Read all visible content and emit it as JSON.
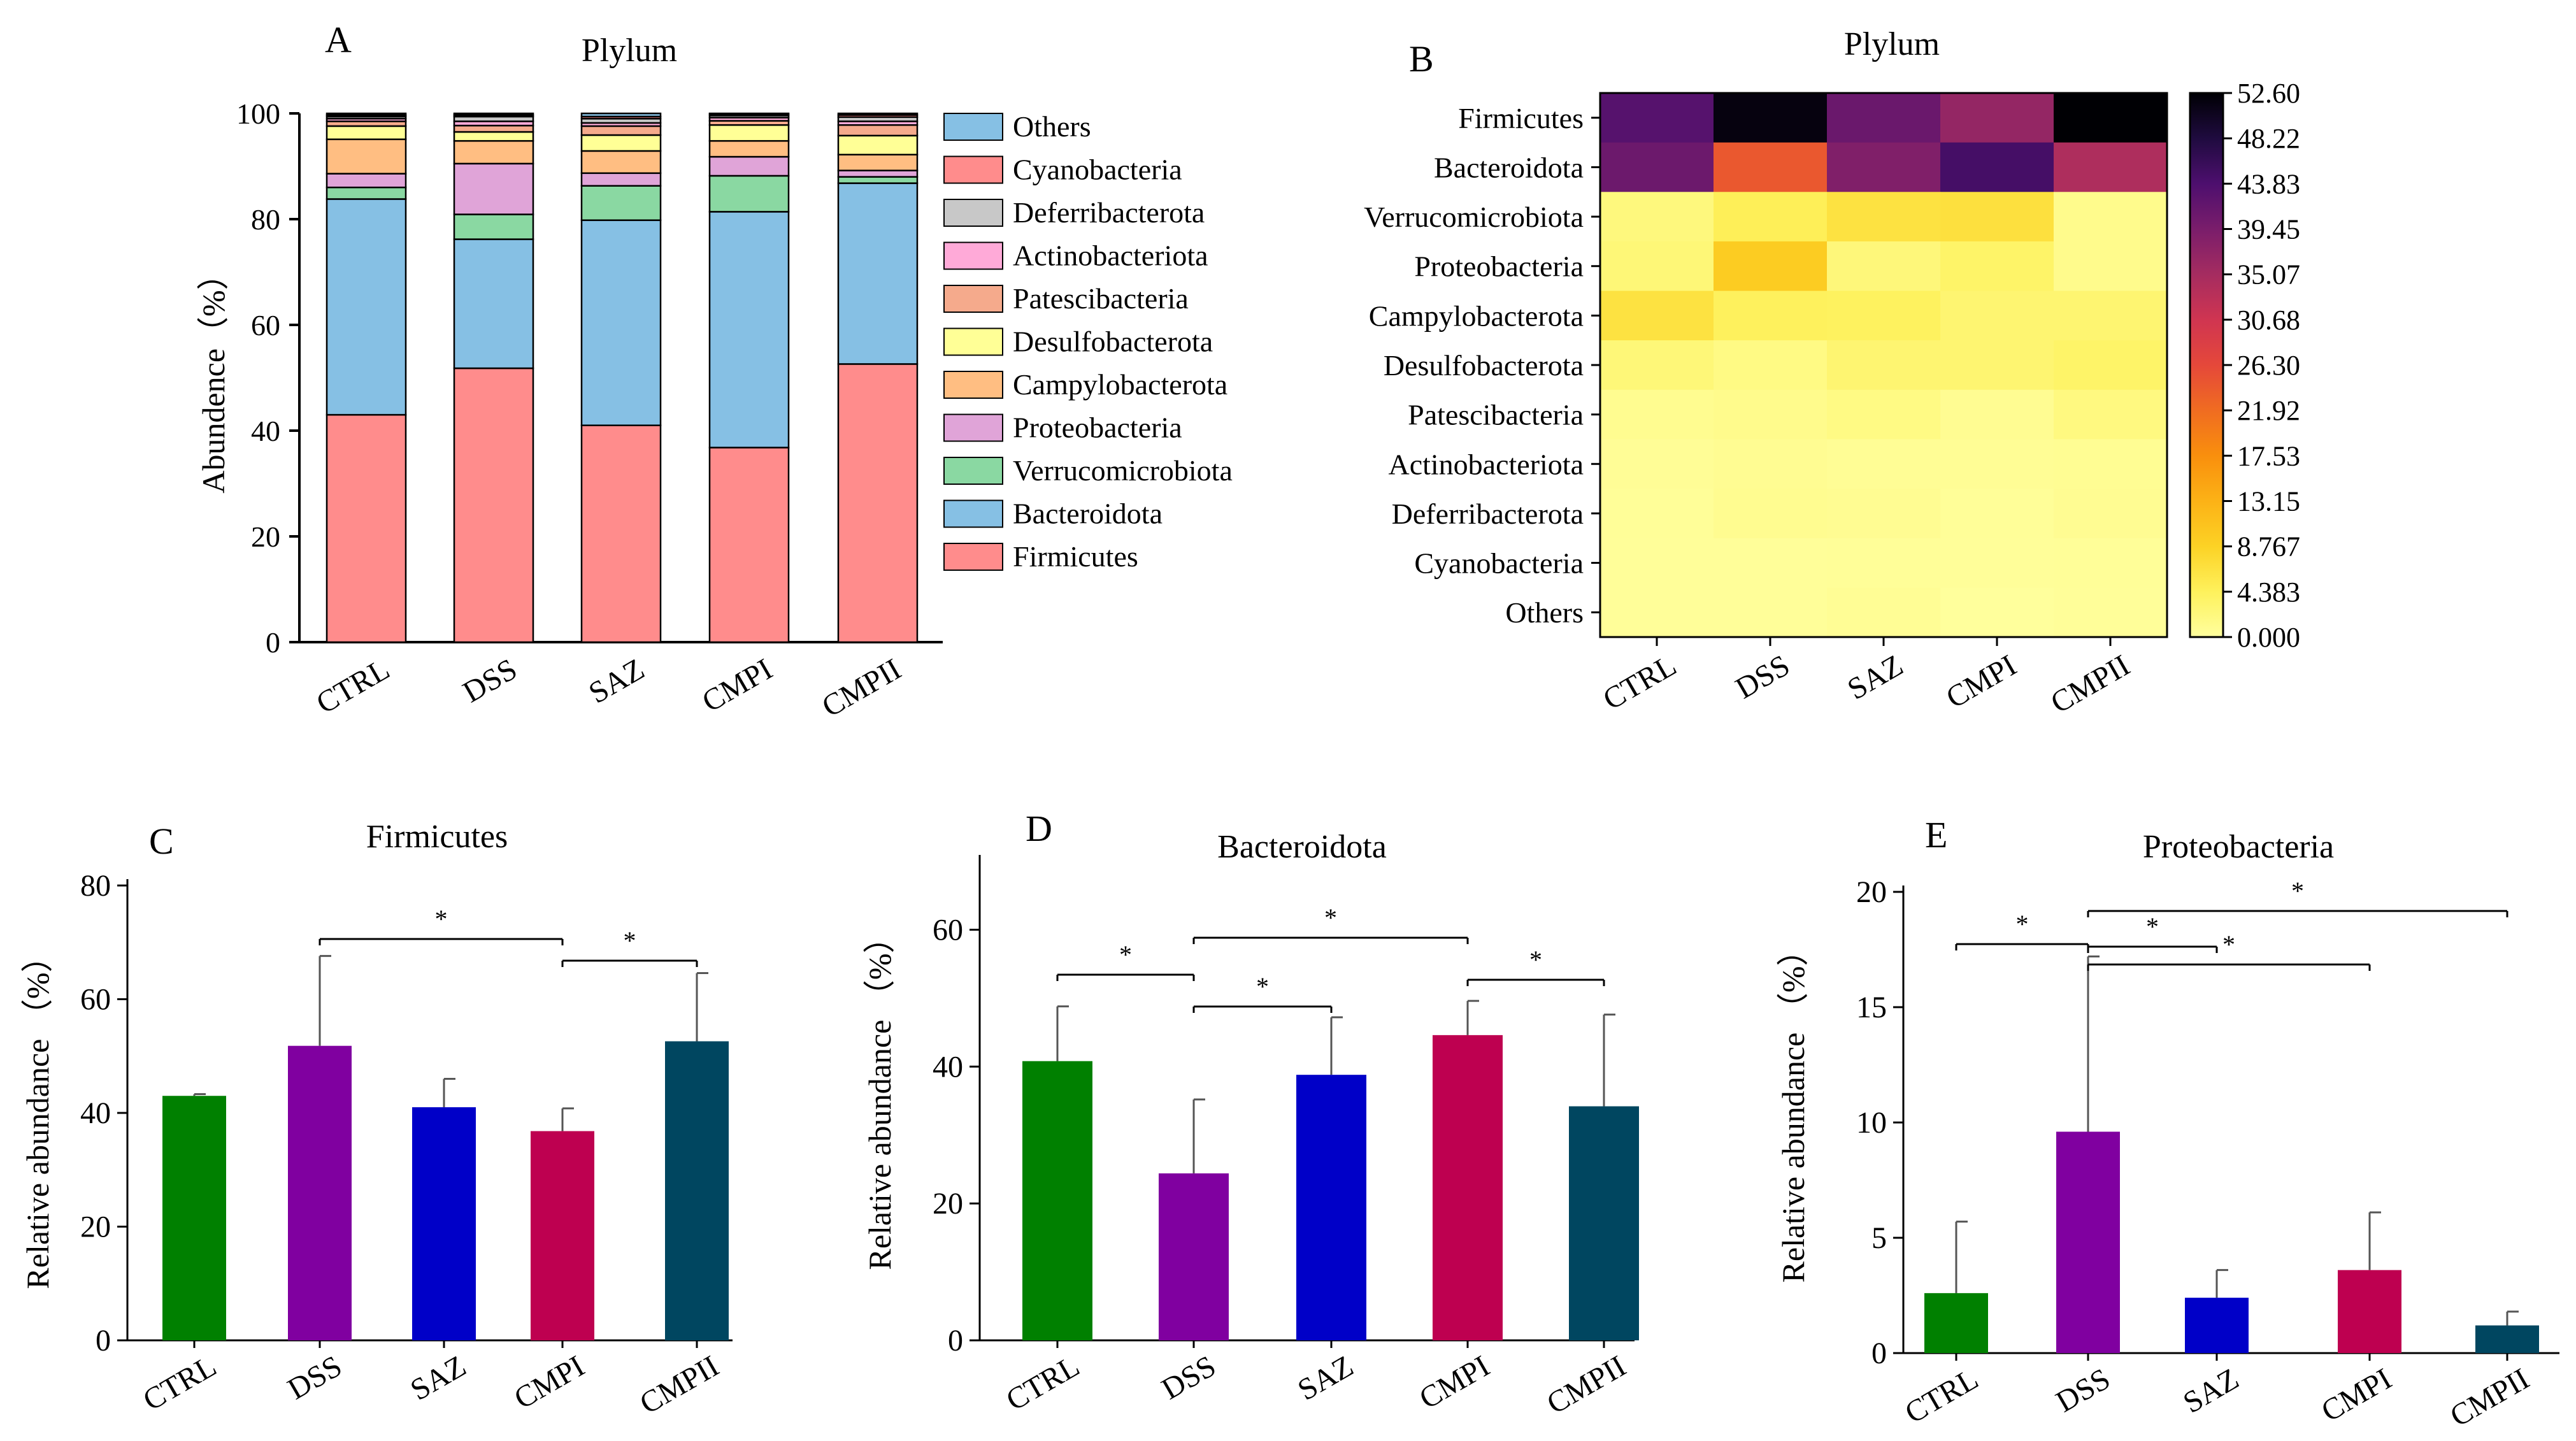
{
  "colors": {
    "Firmicutes": "#ff8c8c",
    "Bacteroidota": "#86c0e4",
    "Verrucomicrobiota": "#8ad8a2",
    "Proteobacteria": "#e0a4d8",
    "Campylobacterota": "#ffbe82",
    "Desulfobacterota": "#ffff96",
    "Patescibacteria": "#f5aa8c",
    "Actinobacteriota": "#ffaad8",
    "Deferribacterota": "#c8c8c8",
    "Cyanobacteria": "#ff8c8c",
    "Others": "#86c0e4",
    "group_CTRL": "#008000",
    "group_DSS": "#8000a0",
    "group_SAZ": "#0000c8",
    "group_CMPI": "#be0050",
    "group_CMPII": "#004660"
  },
  "chart_data": [
    {
      "panel": "A",
      "type": "bar",
      "stacked": true,
      "title": "Plylum",
      "ylabel": "Abundence（%）",
      "xlabel": "",
      "ylim": [
        0,
        100
      ],
      "yticks": [
        "0",
        "20",
        "40",
        "60",
        "80",
        "100"
      ],
      "categories": [
        "CTRL",
        "DSS",
        "SAZ",
        "CMPI",
        "CMPII"
      ],
      "legend": [
        "Others",
        "Cyanobacteria",
        "Deferribacterota",
        "Actinobacteriota",
        "Patescibacteria",
        "Desulfobacterota",
        "Campylobacterota",
        "Proteobacteria",
        "Verrucomicrobiota",
        "Bacteroidota",
        "Firmicutes"
      ],
      "series": [
        {
          "name": "Firmicutes",
          "values": [
            43.0,
            51.8,
            41.0,
            36.8,
            52.6
          ]
        },
        {
          "name": "Bacteroidota",
          "values": [
            40.8,
            24.4,
            38.8,
            44.6,
            34.2
          ]
        },
        {
          "name": "Verrucomicrobiota",
          "values": [
            2.2,
            4.7,
            6.5,
            6.8,
            1.2
          ]
        },
        {
          "name": "Proteobacteria",
          "values": [
            2.6,
            9.6,
            2.4,
            3.6,
            1.2
          ]
        },
        {
          "name": "Campylobacterota",
          "values": [
            6.5,
            4.3,
            4.2,
            3.0,
            3.0
          ]
        },
        {
          "name": "Desulfobacterota",
          "values": [
            2.5,
            1.7,
            3.0,
            3.0,
            3.6
          ]
        },
        {
          "name": "Patescibacteria",
          "values": [
            0.9,
            1.2,
            1.7,
            0.8,
            2.0
          ]
        },
        {
          "name": "Actinobacteriota",
          "values": [
            0.5,
            0.8,
            0.6,
            0.6,
            0.7
          ]
        },
        {
          "name": "Deferribacterota",
          "values": [
            0.4,
            0.9,
            0.8,
            0.4,
            0.8
          ]
        },
        {
          "name": "Cyanobacteria",
          "values": [
            0.3,
            0.3,
            0.4,
            0.3,
            0.4
          ]
        },
        {
          "name": "Others",
          "values": [
            0.3,
            0.3,
            0.6,
            0.1,
            0.3
          ]
        }
      ]
    },
    {
      "panel": "B",
      "type": "heatmap",
      "title": "Plylum",
      "x": [
        "CTRL",
        "DSS",
        "SAZ",
        "CMPI",
        "CMPII"
      ],
      "y": [
        "Firmicutes",
        "Bacteroidota",
        "Verrucomicrobiota",
        "Proteobacteria",
        "Campylobacterota",
        "Desulfobacterota",
        "Patescibacteria",
        "Actinobacteriota",
        "Deferribacterota",
        "Cyanobacteria",
        "Others"
      ],
      "values": [
        [
          43.0,
          51.8,
          41.0,
          36.8,
          52.6
        ],
        [
          40.8,
          24.4,
          38.8,
          44.6,
          34.2
        ],
        [
          2.2,
          4.7,
          6.5,
          6.8,
          1.2
        ],
        [
          2.6,
          9.6,
          2.4,
          3.6,
          1.2
        ],
        [
          6.5,
          4.3,
          4.2,
          3.0,
          3.0
        ],
        [
          2.5,
          1.7,
          3.0,
          3.0,
          3.6
        ],
        [
          0.9,
          1.2,
          1.7,
          0.8,
          2.0
        ],
        [
          0.5,
          0.8,
          0.6,
          0.6,
          0.7
        ],
        [
          0.4,
          0.9,
          0.8,
          0.4,
          0.8
        ],
        [
          0.3,
          0.3,
          0.4,
          0.3,
          0.4
        ],
        [
          0.3,
          0.3,
          0.6,
          0.1,
          0.3
        ]
      ],
      "zlim": [
        0,
        52.6
      ],
      "colorbar_ticks": [
        "52.60",
        "48.22",
        "43.83",
        "39.45",
        "35.07",
        "30.68",
        "26.30",
        "21.92",
        "17.53",
        "13.15",
        "8.767",
        "4.383",
        "0.000"
      ],
      "colormap": [
        "#ffff9e",
        "#fef15c",
        "#fcd225",
        "#fcb216",
        "#f98f0d",
        "#f06c21",
        "#e5483a",
        "#d03551",
        "#a52c60",
        "#7a1d6b",
        "#4d0f6e",
        "#1f0b3f",
        "#000004"
      ]
    },
    {
      "panel": "C",
      "type": "bar",
      "title": "Firmicutes",
      "ylabel": "Relative   abundance （%）",
      "xlabel": "",
      "ylim": [
        0,
        80
      ],
      "yticks": [
        "0",
        "20",
        "40",
        "60",
        "80"
      ],
      "categories": [
        "CTRL",
        "DSS",
        "SAZ",
        "CMPI",
        "CMPII"
      ],
      "values": [
        43.0,
        51.8,
        41.0,
        36.8,
        52.6
      ],
      "errors": [
        0.3,
        15.8,
        5.0,
        4.0,
        12.0
      ],
      "significance": [
        {
          "from": 1,
          "to": 3,
          "label": "*"
        },
        {
          "from": 3,
          "to": 4,
          "label": "*"
        }
      ]
    },
    {
      "panel": "D",
      "type": "bar",
      "title": "Bacteroidota",
      "ylabel": "Relative   abundance （%）",
      "xlabel": "",
      "ylim": [
        0,
        70
      ],
      "yticks": [
        "0",
        "20",
        "40",
        "60"
      ],
      "categories": [
        "CTRL",
        "DSS",
        "SAZ",
        "CMPI",
        "CMPII"
      ],
      "values": [
        40.8,
        24.4,
        38.8,
        44.6,
        34.2
      ],
      "errors": [
        8.0,
        10.8,
        8.4,
        5.0,
        13.4
      ],
      "significance": [
        {
          "from": 0,
          "to": 1,
          "label": "*"
        },
        {
          "from": 1,
          "to": 2,
          "label": "*"
        },
        {
          "from": 1,
          "to": 3,
          "label": "*"
        },
        {
          "from": 3,
          "to": 4,
          "label": "*"
        }
      ]
    },
    {
      "panel": "E",
      "type": "bar",
      "title": "Proteobacteria",
      "ylabel": "Relative   abundance （%）",
      "xlabel": "",
      "ylim": [
        0,
        20
      ],
      "yticks": [
        "0",
        "5",
        "10",
        "15",
        "20"
      ],
      "categories": [
        "CTRL",
        "DSS",
        "SAZ",
        "CMPI",
        "CMPII"
      ],
      "values": [
        2.6,
        9.6,
        2.4,
        3.6,
        1.2
      ],
      "errors": [
        3.1,
        7.6,
        1.2,
        2.5,
        0.6
      ],
      "significance": [
        {
          "from": 0,
          "to": 1,
          "label": "*"
        },
        {
          "from": 1,
          "to": 2,
          "label": "*"
        },
        {
          "from": 1,
          "to": 3,
          "label": "*"
        },
        {
          "from": 1,
          "to": 4,
          "label": "*"
        }
      ]
    }
  ]
}
